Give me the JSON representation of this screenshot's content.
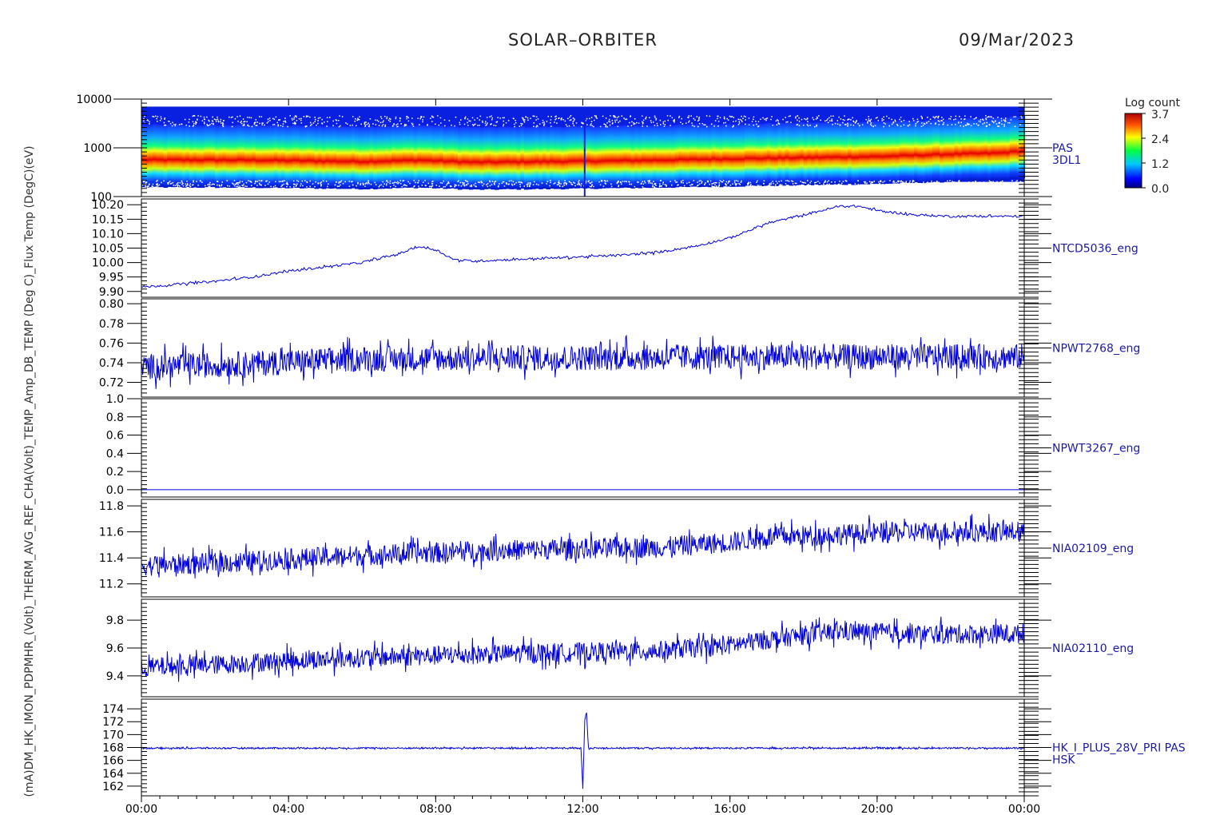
{
  "header": {
    "title": "SOLAR–ORBITER",
    "date": "09/Mar/2023"
  },
  "y_axis_stacked_label": "(mA)DM_HK_IMON_PDPMHR_(Volt)_THERM_AVG_REF_CHA(Volt)_TEMP_Amp_DB_TEMP (Deg C)_Flux Temp (DegC)(eV)",
  "colorbar": {
    "title": "Log count",
    "ticks": [
      "3.7",
      "2.4",
      "1.2",
      "0.0"
    ]
  },
  "x_axis": {
    "tick_labels": [
      "00:00",
      "04:00",
      "08:00",
      "12:00",
      "16:00",
      "20:00",
      "00:00"
    ],
    "range_hours": [
      0,
      24
    ]
  },
  "colors": {
    "trace": "#0000dd",
    "label": "#1a1aa8",
    "axis": "#000000"
  },
  "chart_data": [
    {
      "type": "heatmap",
      "panel_label": "PAS\n3DL1",
      "y_scale": "log",
      "ylim": [
        100,
        10000
      ],
      "y_ticks": [
        "10000",
        "1000",
        "100"
      ],
      "color_range": [
        0.0,
        3.7
      ],
      "peak_energy_track_ev": [
        [
          0,
          650
        ],
        [
          3,
          640
        ],
        [
          6,
          600
        ],
        [
          7.5,
          640
        ],
        [
          9,
          580
        ],
        [
          12,
          610
        ],
        [
          14,
          640
        ],
        [
          16,
          680
        ],
        [
          18,
          720
        ],
        [
          20,
          760
        ],
        [
          22,
          850
        ],
        [
          23.3,
          900
        ],
        [
          24,
          1000
        ]
      ]
    },
    {
      "type": "line",
      "panel_label": "NTCD5036_eng",
      "ylim": [
        9.88,
        10.22
      ],
      "y_ticks": [
        "10.20",
        "10.15",
        "10.10",
        "10.05",
        "10.00",
        "9.95",
        "9.90"
      ],
      "y_tick_values": [
        10.2,
        10.15,
        10.1,
        10.05,
        10.0,
        9.95,
        9.9
      ],
      "x": [
        0,
        1,
        2,
        3,
        4,
        5,
        6,
        7,
        7.5,
        8,
        8.5,
        9,
        10,
        11,
        12,
        13,
        14,
        15,
        16,
        17,
        18,
        19,
        19.5,
        20,
        21,
        22,
        23,
        24
      ],
      "values": [
        9.915,
        9.925,
        9.935,
        9.95,
        9.97,
        9.985,
        10.0,
        10.03,
        10.055,
        10.045,
        10.01,
        10.005,
        10.01,
        10.015,
        10.02,
        10.025,
        10.035,
        10.055,
        10.085,
        10.135,
        10.165,
        10.195,
        10.195,
        10.18,
        10.165,
        10.16,
        10.16,
        10.16
      ],
      "noise_amplitude": 0.004
    },
    {
      "type": "line",
      "panel_label": "NPWT2768_eng",
      "ylim": [
        0.705,
        0.805
      ],
      "y_ticks": [
        "0.80",
        "0.78",
        "0.76",
        "0.74",
        "0.72"
      ],
      "y_tick_values": [
        0.8,
        0.78,
        0.76,
        0.74,
        0.72
      ],
      "x": [
        0,
        3,
        6,
        12,
        18,
        24
      ],
      "values": [
        0.736,
        0.739,
        0.744,
        0.745,
        0.746,
        0.746
      ],
      "noise_amplitude": 0.013
    },
    {
      "type": "line",
      "panel_label": "NPWT3267_eng",
      "ylim": [
        -0.08,
        1.0
      ],
      "y_ticks": [
        "1.0",
        "0.8",
        "0.6",
        "0.4",
        "0.2",
        "0.0"
      ],
      "y_tick_values": [
        1.0,
        0.8,
        0.6,
        0.4,
        0.2,
        0.0
      ],
      "x": [
        0,
        24
      ],
      "values": [
        0.0,
        0.0
      ],
      "noise_amplitude": 0.0
    },
    {
      "type": "line",
      "panel_label": "NIA02109_eng",
      "ylim": [
        11.1,
        11.85
      ],
      "y_ticks": [
        "11.8",
        "11.6",
        "11.4",
        "11.2"
      ],
      "y_tick_values": [
        11.8,
        11.6,
        11.4,
        11.2
      ],
      "x": [
        0,
        2,
        4,
        6,
        10,
        14,
        16,
        17,
        19,
        21,
        24
      ],
      "values": [
        11.34,
        11.36,
        11.39,
        11.42,
        11.46,
        11.48,
        11.52,
        11.56,
        11.58,
        11.6,
        11.6
      ],
      "noise_amplitude": 0.08
    },
    {
      "type": "line",
      "panel_label": "NIA02110_eng",
      "ylim": [
        9.25,
        9.95
      ],
      "y_ticks": [
        "9.8",
        "9.6",
        "9.4"
      ],
      "y_tick_values": [
        9.8,
        9.6,
        9.4
      ],
      "x": [
        0,
        2,
        4,
        6,
        10,
        14,
        16,
        17,
        19,
        21,
        24
      ],
      "values": [
        9.46,
        9.48,
        9.51,
        9.53,
        9.56,
        9.58,
        9.62,
        9.66,
        9.72,
        9.7,
        9.7
      ],
      "noise_amplitude": 0.07
    },
    {
      "type": "line",
      "panel_label": "HK_I_PLUS_28V_PRI PAS\nHSK",
      "ylim": [
        160.5,
        175.5
      ],
      "y_ticks": [
        "174",
        "172",
        "170",
        "168",
        "166",
        "164",
        "162"
      ],
      "y_tick_values": [
        174,
        172,
        170,
        168,
        166,
        164,
        162
      ],
      "x": [
        0,
        11.95,
        12.0,
        12.05,
        12.1,
        12.15,
        24
      ],
      "values": [
        167.9,
        167.9,
        161.5,
        172.0,
        173.8,
        167.9,
        167.9
      ],
      "noise_amplitude": 0.12
    }
  ]
}
